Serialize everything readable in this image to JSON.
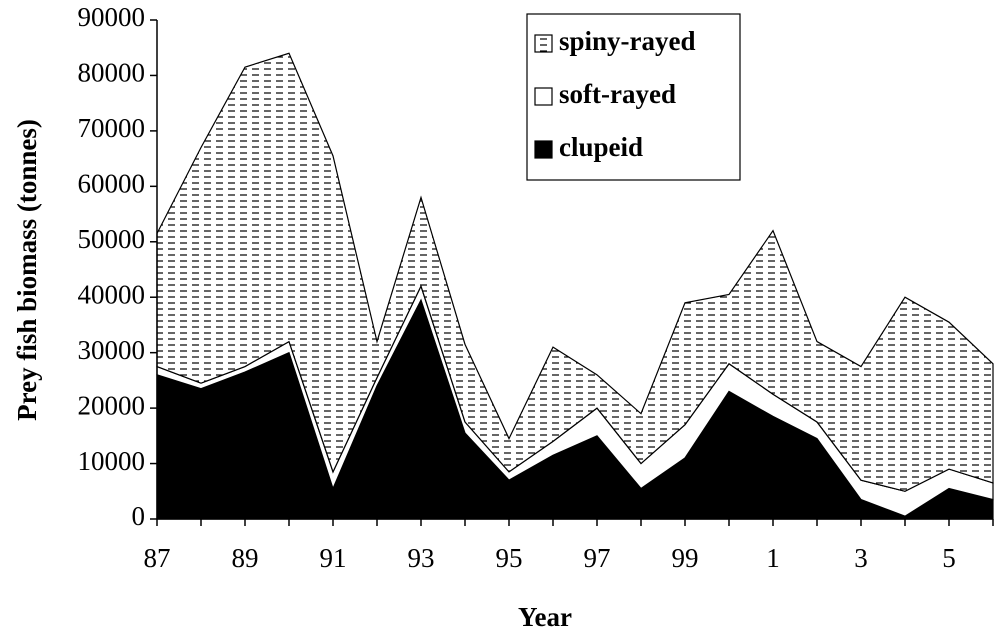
{
  "chart_data": {
    "type": "stacked_area",
    "x_label": "Year",
    "y_label": "Prey fish biomass (tonnes)",
    "categories": [
      "87",
      null,
      "89",
      null,
      "91",
      null,
      "93",
      null,
      "95",
      null,
      "97",
      null,
      "99",
      null,
      "1",
      null,
      "3",
      null,
      "5",
      null
    ],
    "series": [
      {
        "name": "clupeid",
        "color": "#000000",
        "values": [
          26000,
          23500,
          26500,
          30000,
          5500,
          24000,
          39500,
          15500,
          7000,
          11500,
          15000,
          5500,
          11000,
          23000,
          18500,
          14500,
          3500,
          500,
          5500,
          3500
        ]
      },
      {
        "name": "soft-rayed",
        "color": "#ffffff",
        "values": [
          1500,
          1000,
          1000,
          2000,
          3000,
          1500,
          2500,
          2000,
          1500,
          2500,
          5000,
          4500,
          6000,
          5000,
          4000,
          3000,
          3500,
          4500,
          3500,
          3000
        ]
      },
      {
        "name": "spiny-rayed",
        "color": "#000000",
        "pattern": "dashes",
        "values": [
          24000,
          42500,
          54000,
          52000,
          57000,
          6500,
          16000,
          14000,
          6000,
          17000,
          6000,
          9000,
          22000,
          12500,
          29500,
          14500,
          20500,
          35000,
          26500,
          21500
        ]
      }
    ],
    "ylim": [
      0,
      90000
    ],
    "yticks": [
      0,
      10000,
      20000,
      30000,
      40000,
      50000,
      60000,
      70000,
      80000,
      90000
    ],
    "grid": false,
    "legend": "top-right"
  }
}
